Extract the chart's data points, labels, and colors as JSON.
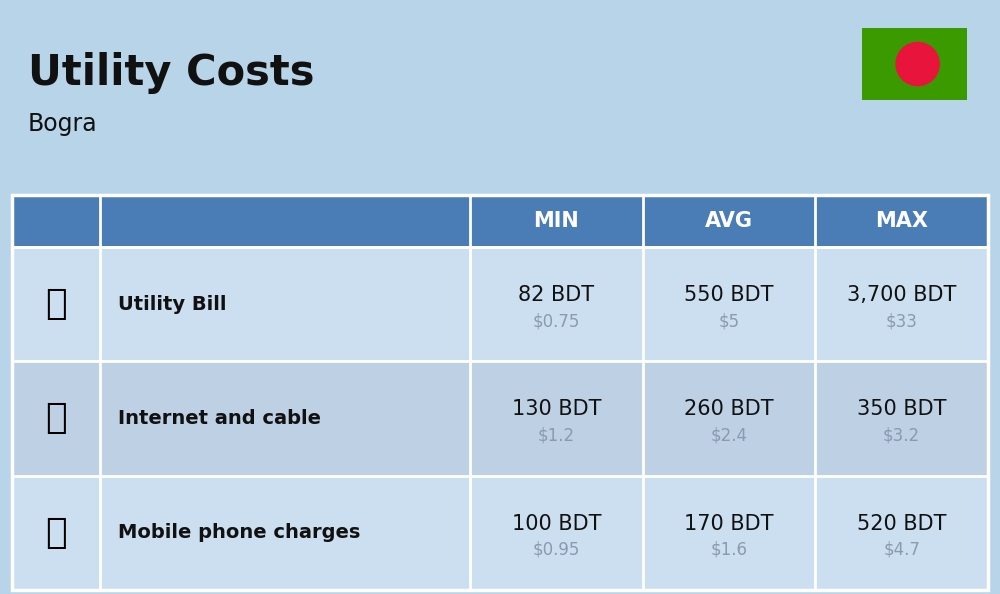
{
  "title": "Utility Costs",
  "subtitle": "Bogra",
  "background_color": "#b8d4e8",
  "header_bg_color": "#4a7db5",
  "header_text_color": "#ffffff",
  "row_colors_odd": "#ccdff0",
  "row_colors_even": "#bdd0e4",
  "table_border_color": "#ffffff",
  "columns": [
    "MIN",
    "AVG",
    "MAX"
  ],
  "rows": [
    {
      "label": "Utility Bill",
      "min_bdt": "82 BDT",
      "min_usd": "$0.75",
      "avg_bdt": "550 BDT",
      "avg_usd": "$5",
      "max_bdt": "3,700 BDT",
      "max_usd": "$33"
    },
    {
      "label": "Internet and cable",
      "min_bdt": "130 BDT",
      "min_usd": "$1.2",
      "avg_bdt": "260 BDT",
      "avg_usd": "$2.4",
      "max_bdt": "350 BDT",
      "max_usd": "$3.2"
    },
    {
      "label": "Mobile phone charges",
      "min_bdt": "100 BDT",
      "min_usd": "$0.95",
      "avg_bdt": "170 BDT",
      "avg_usd": "$1.6",
      "max_bdt": "520 BDT",
      "max_usd": "$4.7"
    }
  ],
  "flag_green": "#3a9a00",
  "flag_red": "#e8143c",
  "title_fontsize": 30,
  "subtitle_fontsize": 17,
  "label_fontsize": 14,
  "value_fontsize": 15,
  "usd_fontsize": 12,
  "header_fontsize": 15,
  "text_color_dark": "#111111",
  "text_color_usd": "#8a9ab0"
}
